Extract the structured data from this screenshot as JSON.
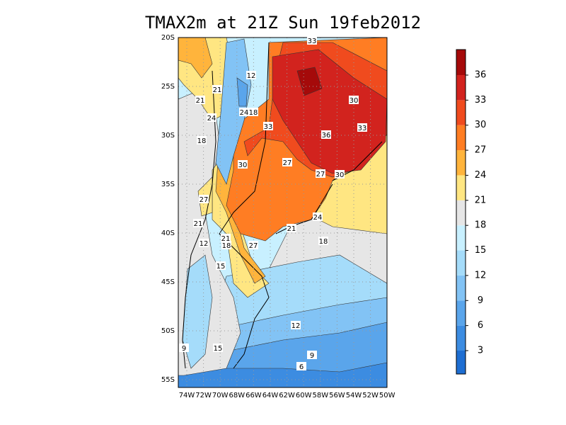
{
  "title": "TMAX2m at 21Z Sun 19feb2012",
  "lat_labels": [
    "20S",
    "25S",
    "30S",
    "35S",
    "40S",
    "45S",
    "50S",
    "55S"
  ],
  "lon_labels": [
    "74W",
    "72W",
    "70W",
    "68W",
    "66W",
    "64W",
    "62W",
    "60W",
    "58W",
    "56W",
    "54W",
    "52W",
    "50W"
  ],
  "colorbar": {
    "levels": [
      3,
      6,
      9,
      12,
      15,
      18,
      21,
      24,
      27,
      30,
      33,
      36
    ],
    "colors": [
      "#1e6ed2",
      "#3c8ce1",
      "#5aa5eb",
      "#82c3f5",
      "#a5dcfa",
      "#c8f0ff",
      "#e6e6e6",
      "#ffe682",
      "#ffb43c",
      "#ff7d23",
      "#f04b1e",
      "#d2231e",
      "#a50a0a"
    ]
  },
  "contour_labels": [
    33,
    12,
    21,
    21,
    24,
    18,
    24,
    30,
    33,
    36,
    33,
    18,
    27,
    30,
    27,
    30,
    27,
    24,
    21,
    21,
    21,
    12,
    18,
    27,
    18,
    15,
    12,
    9,
    15,
    9,
    6
  ]
}
